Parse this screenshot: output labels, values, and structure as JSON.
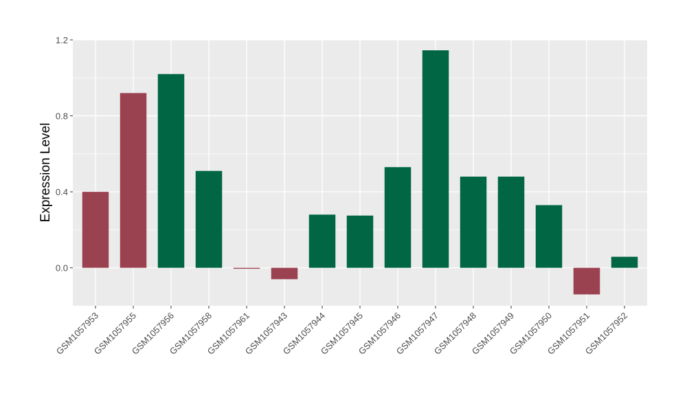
{
  "chart_data": {
    "type": "bar",
    "title": "",
    "xlabel": "",
    "ylabel": "Expression Level",
    "ylim": [
      -0.2,
      1.2
    ],
    "yticks": [
      0.0,
      0.4,
      0.8,
      1.2
    ],
    "ytick_labels": [
      "0.0",
      "0.4",
      "0.8",
      "1.2"
    ],
    "grid": true,
    "categories": [
      "GSM1057953",
      "GSM1057955",
      "GSM1057956",
      "GSM1057958",
      "GSM1057961",
      "GSM1057943",
      "GSM1057944",
      "GSM1057945",
      "GSM1057946",
      "GSM1057947",
      "GSM1057948",
      "GSM1057949",
      "GSM1057950",
      "GSM1057951",
      "GSM1057952"
    ],
    "values": [
      0.4,
      0.92,
      1.02,
      0.51,
      -0.005,
      -0.06,
      0.28,
      0.275,
      0.53,
      1.145,
      0.48,
      0.48,
      0.33,
      -0.14,
      0.058
    ],
    "groups": [
      "red",
      "red",
      "green",
      "green",
      "red",
      "red",
      "green",
      "green",
      "green",
      "green",
      "green",
      "green",
      "green",
      "red",
      "green"
    ],
    "colors": {
      "red": "#9B4250",
      "green": "#006644",
      "panel": "#EBEBEB",
      "grid": "#FFFFFF"
    }
  }
}
